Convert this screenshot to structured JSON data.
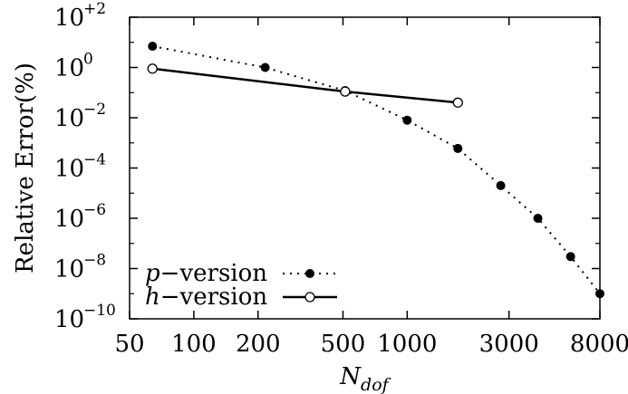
{
  "chart_data": {
    "type": "scatter",
    "xlabel": {
      "main": "N",
      "sub": "dof"
    },
    "ylabel": "Relative Error(%)",
    "x_scale": "log",
    "y_scale": "log",
    "xlim": [
      50,
      8000
    ],
    "ylim": [
      1e-10,
      100
    ],
    "x_ticks": [
      50,
      100,
      200,
      500,
      1000,
      3000,
      8000
    ],
    "x_tick_labels": [
      "50",
      "100",
      "200",
      "500",
      "1000",
      "3000",
      "8000"
    ],
    "y_ticks": [
      {
        "value": 1e-10,
        "base": "10",
        "exp": "−10"
      },
      {
        "value": 1e-08,
        "base": "10",
        "exp": "−8"
      },
      {
        "value": 1e-06,
        "base": "10",
        "exp": "−6"
      },
      {
        "value": 0.0001,
        "base": "10",
        "exp": "−4"
      },
      {
        "value": 0.01,
        "base": "10",
        "exp": "−2"
      },
      {
        "value": 1,
        "base": "10",
        "exp": "0"
      },
      {
        "value": 100,
        "base": "10",
        "exp": "+2"
      }
    ],
    "grid": false,
    "legend_position": "bottom-left",
    "series": [
      {
        "name_italic": "p",
        "name_rest": "−version",
        "marker": "filled-circle",
        "line": "dotted",
        "color": "#000000",
        "points": [
          {
            "x": 64,
            "y": 7.0
          },
          {
            "x": 216,
            "y": 1.0
          },
          {
            "x": 512,
            "y": 0.12
          },
          {
            "x": 1000,
            "y": 0.008
          },
          {
            "x": 1728,
            "y": 0.0006
          },
          {
            "x": 2744,
            "y": 2e-05
          },
          {
            "x": 4096,
            "y": 1e-06
          },
          {
            "x": 5832,
            "y": 3e-08
          },
          {
            "x": 8000,
            "y": 1e-09
          }
        ]
      },
      {
        "name_italic": "h",
        "name_rest": "−version",
        "marker": "open-circle",
        "line": "solid",
        "color": "#000000",
        "points": [
          {
            "x": 64,
            "y": 0.9
          },
          {
            "x": 512,
            "y": 0.11
          },
          {
            "x": 1728,
            "y": 0.04
          }
        ]
      }
    ]
  }
}
